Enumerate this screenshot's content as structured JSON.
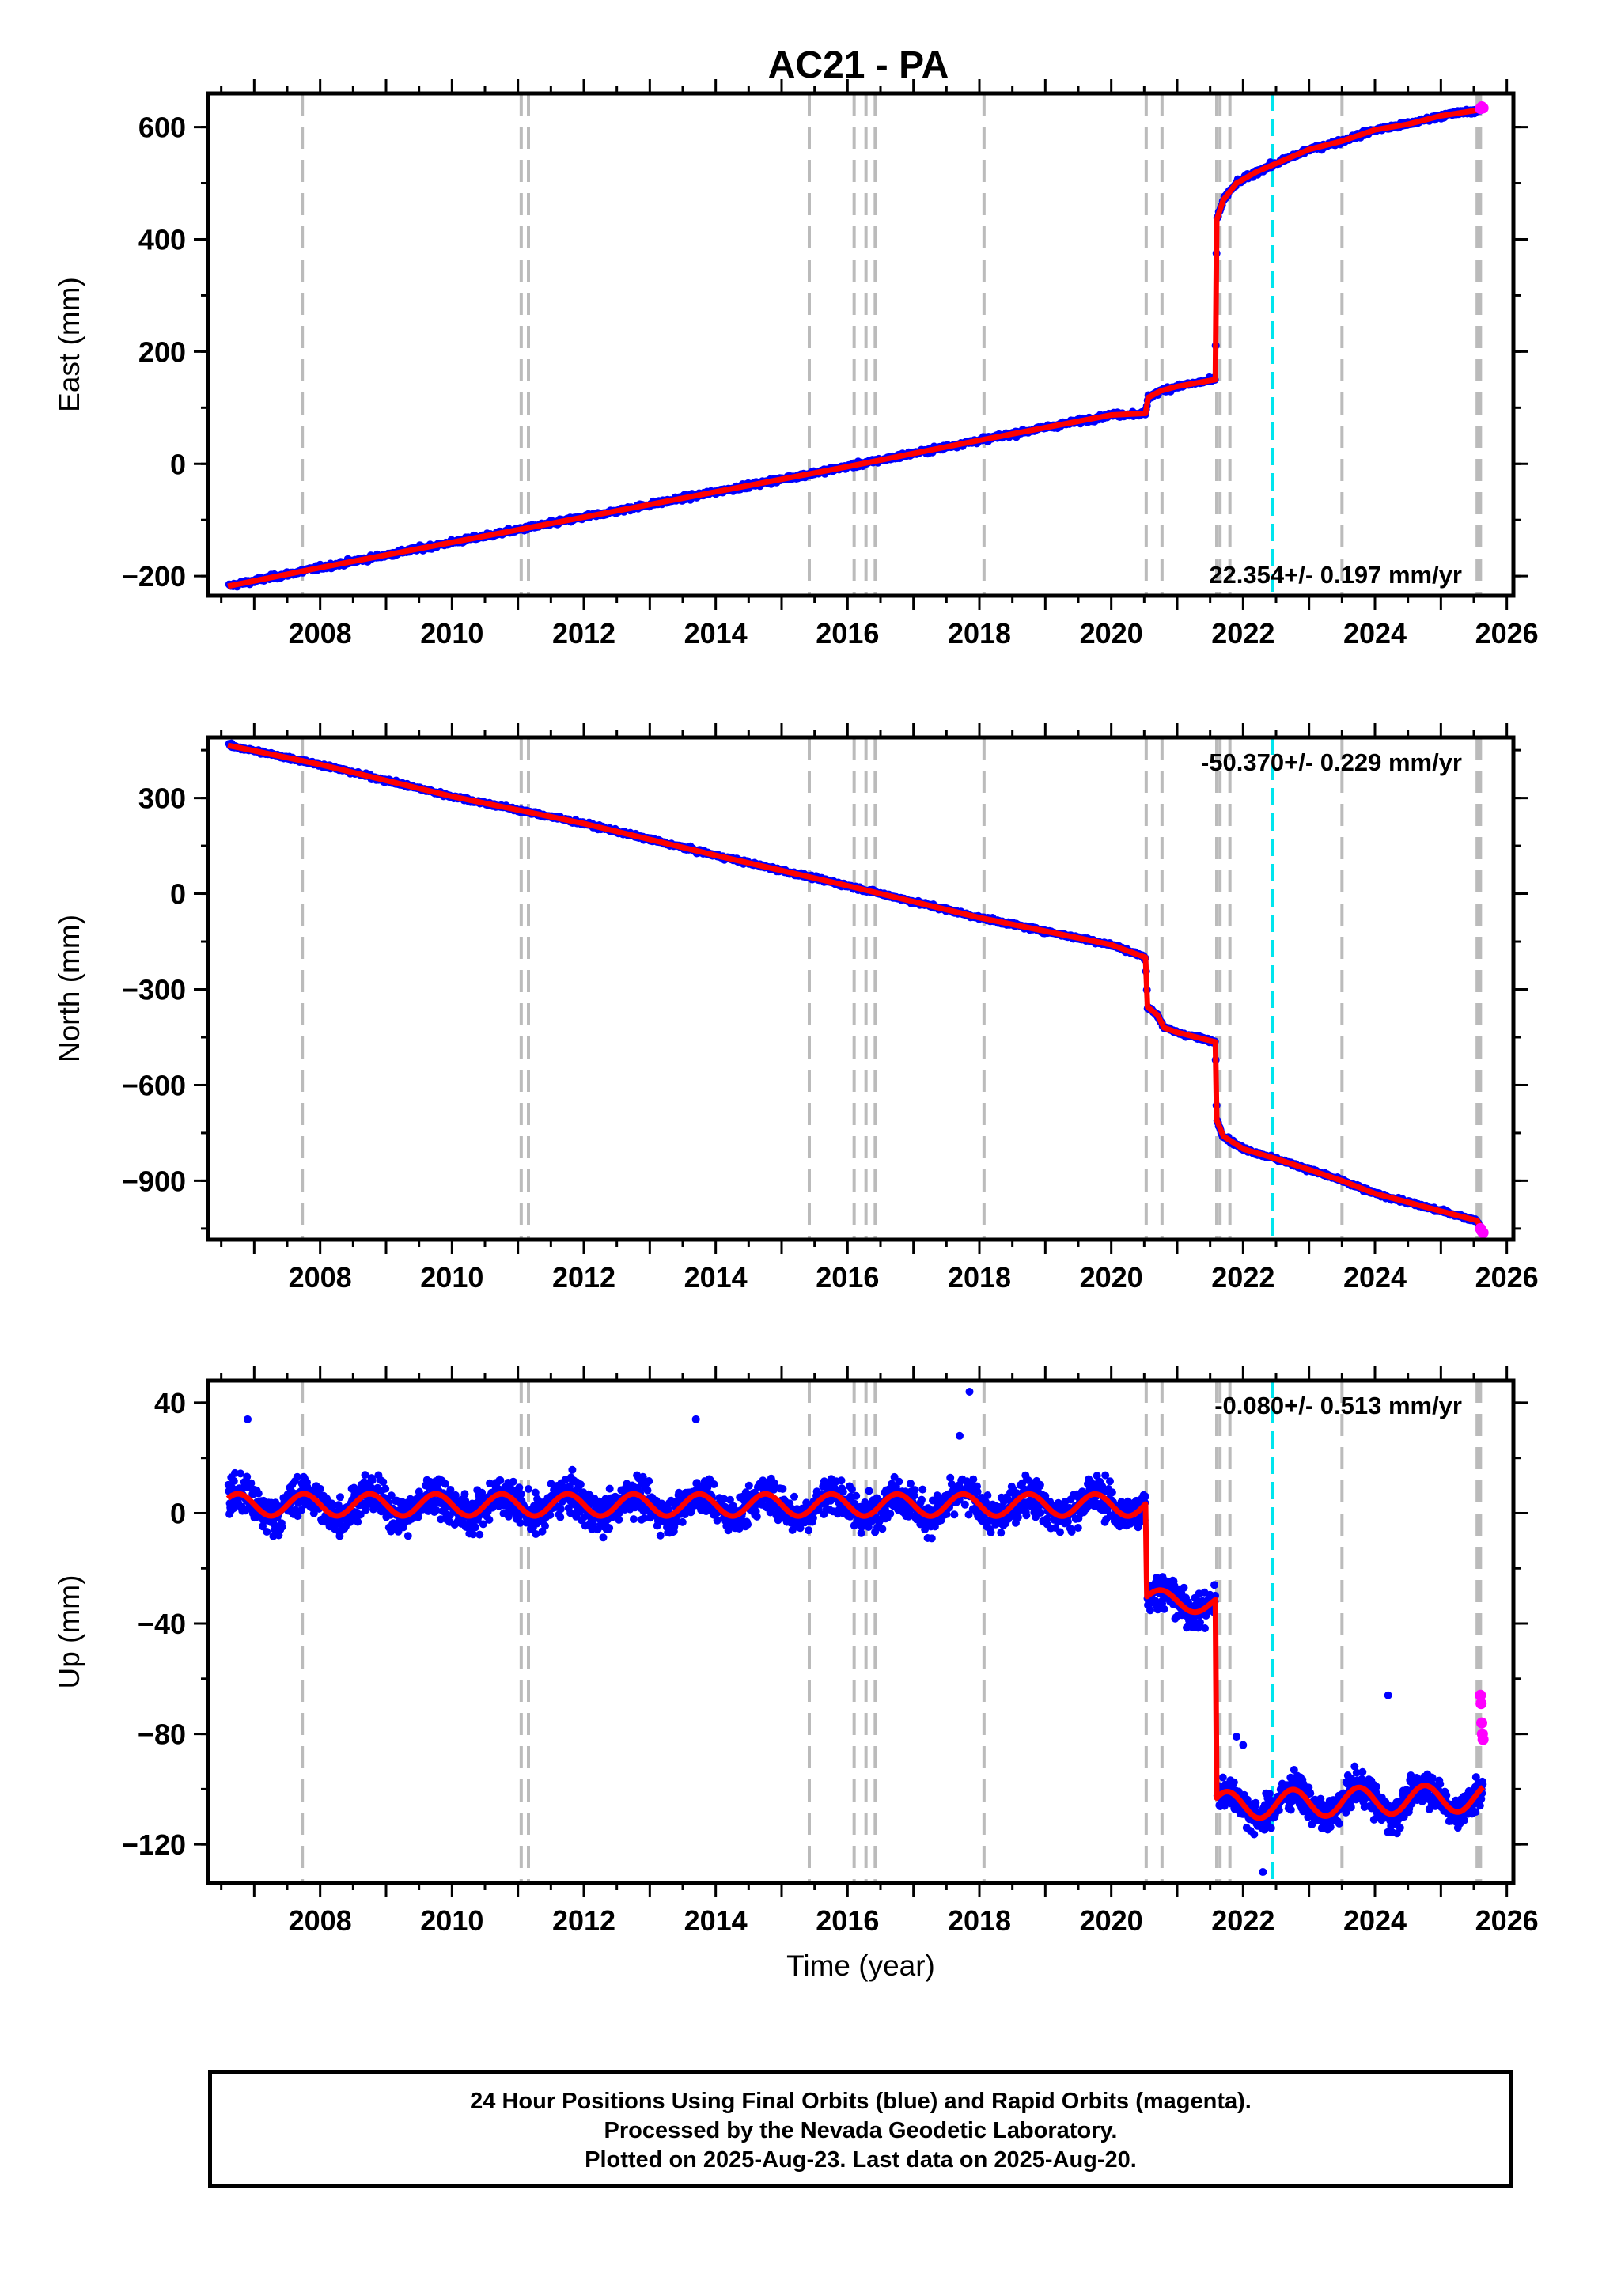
{
  "title": "AC21 - PA",
  "x_label": "Time (year)",
  "caption": {
    "line1": "24 Hour Positions Using Final Orbits (blue) and Rapid Orbits (magenta).",
    "line2": "Processed by the Nevada Geodetic Laboratory.",
    "line3": "Plotted on 2025-Aug-23. Last data on 2025-Aug-20."
  },
  "colors": {
    "final_orbits": "#0000ff",
    "rapid_orbits": "#ff00ff",
    "model_fit": "#ff0000",
    "events": "#bbbbbb",
    "highlight_event": "#00e5ee"
  },
  "chart_data": [
    {
      "type": "scatter",
      "id": "east",
      "ylabel": "East (mm)",
      "xlim": [
        2006.3,
        2026.1
      ],
      "ylim": [
        -235,
        660
      ],
      "xticks": [
        2008,
        2010,
        2012,
        2014,
        2016,
        2018,
        2020,
        2022,
        2024,
        2026
      ],
      "yticks": [
        -200,
        0,
        200,
        400,
        600
      ],
      "rate_label": "22.354+/- 0.197 mm/yr",
      "rate_position": "bottom-right",
      "event_lines": [
        2007.73,
        2011.05,
        2011.16,
        2015.42,
        2016.1,
        2016.28,
        2016.42,
        2018.07,
        2020.53,
        2020.77,
        2021.6,
        2021.65,
        2021.8,
        2023.5,
        2025.55,
        2025.6
      ],
      "highlight_lines": [
        2022.45
      ],
      "series": [
        {
          "name": "model",
          "x": [
            2006.6,
            2008,
            2010,
            2012,
            2014,
            2016,
            2018,
            2020,
            2020.52,
            2020.56,
            2020.75,
            2021.0,
            2021.58,
            2021.6,
            2021.7,
            2021.9,
            2022.2,
            2022.5,
            2023.0,
            2023.5,
            2024.0,
            2024.5,
            2025.0,
            2025.55,
            2025.64
          ],
          "y": [
            -218,
            -185,
            -140,
            -95,
            -50,
            -5,
            42,
            87,
            90,
            118,
            130,
            138,
            150,
            435,
            470,
            500,
            520,
            535,
            560,
            575,
            595,
            605,
            620,
            630,
            632
          ]
        },
        {
          "name": "rapid",
          "x": [
            2025.6,
            2025.62,
            2025.64
          ],
          "y": [
            633,
            636,
            634
          ]
        }
      ]
    },
    {
      "type": "scatter",
      "id": "north",
      "ylabel": "North (mm)",
      "xlim": [
        2006.3,
        2026.1
      ],
      "ylim": [
        -1085,
        490
      ],
      "xticks": [
        2008,
        2010,
        2012,
        2014,
        2016,
        2018,
        2020,
        2022,
        2024,
        2026
      ],
      "yticks": [
        -900,
        -600,
        -300,
        0,
        300
      ],
      "rate_label": "-50.370+/- 0.229 mm/yr",
      "rate_position": "top-right",
      "event_lines": [
        2007.73,
        2011.05,
        2011.16,
        2015.42,
        2016.1,
        2016.28,
        2016.42,
        2018.07,
        2020.53,
        2020.77,
        2021.6,
        2021.65,
        2021.8,
        2023.5,
        2025.55,
        2025.6
      ],
      "highlight_lines": [
        2022.45
      ],
      "series": [
        {
          "name": "model",
          "x": [
            2006.6,
            2008,
            2010,
            2012,
            2014,
            2016,
            2018,
            2020,
            2020.52,
            2020.55,
            2020.7,
            2020.8,
            2021.0,
            2021.58,
            2021.6,
            2021.7,
            2022.0,
            2022.45,
            2023.0,
            2023.5,
            2024.0,
            2025.0,
            2025.55,
            2025.64
          ],
          "y": [
            465,
            405,
            305,
            220,
            120,
            25,
            -75,
            -160,
            -200,
            -355,
            -380,
            -420,
            -435,
            -465,
            -710,
            -760,
            -800,
            -828,
            -865,
            -900,
            -940,
            -995,
            -1025,
            -1060
          ]
        },
        {
          "name": "rapid",
          "x": [
            2025.6,
            2025.62,
            2025.64
          ],
          "y": [
            -1050,
            -1058,
            -1063
          ]
        }
      ]
    },
    {
      "type": "scatter",
      "id": "up",
      "ylabel": "Up (mm)",
      "xlabel": "Time (year)",
      "xlim": [
        2006.3,
        2026.1
      ],
      "ylim": [
        -134,
        48
      ],
      "xticks": [
        2008,
        2010,
        2012,
        2014,
        2016,
        2018,
        2020,
        2022,
        2024,
        2026
      ],
      "yticks": [
        -120,
        -80,
        -40,
        0,
        40
      ],
      "rate_label": "-0.080+/- 0.513 mm/yr",
      "rate_position": "top-right",
      "event_lines": [
        2007.73,
        2011.05,
        2011.16,
        2015.42,
        2016.1,
        2016.28,
        2016.42,
        2018.07,
        2020.53,
        2020.77,
        2021.6,
        2021.65,
        2021.8,
        2023.5,
        2025.55,
        2025.6
      ],
      "highlight_lines": [
        2022.45
      ],
      "series": [
        {
          "name": "model_segments",
          "segments": [
            {
              "x0": 2006.6,
              "x1": 2020.52,
              "offset": 3,
              "amp": 4,
              "trend": -0.1
            },
            {
              "x0": 2020.54,
              "x1": 2021.58,
              "offset": -31,
              "amp": 3.5,
              "trend": -2
            },
            {
              "x0": 2021.6,
              "x1": 2025.64,
              "offset": -106,
              "amp": 5,
              "trend": 3
            }
          ],
          "steps": [
            {
              "x": 2020.53,
              "y0": 1,
              "y1": -25
            },
            {
              "x": 2021.59,
              "y0": -33,
              "y1": -110
            }
          ]
        },
        {
          "name": "rapid",
          "x": [
            2025.6,
            2025.61,
            2025.62,
            2025.63,
            2025.64
          ],
          "y": [
            -66,
            -69,
            -76,
            -80,
            -82
          ]
        },
        {
          "name": "outliers",
          "x": [
            2006.9,
            2013.7,
            2017.85,
            2017.7,
            2021.9,
            2022.0,
            2022.3,
            2024.2
          ],
          "y": [
            34,
            34,
            44,
            28,
            -81,
            -84,
            -130,
            -66
          ]
        }
      ]
    }
  ]
}
